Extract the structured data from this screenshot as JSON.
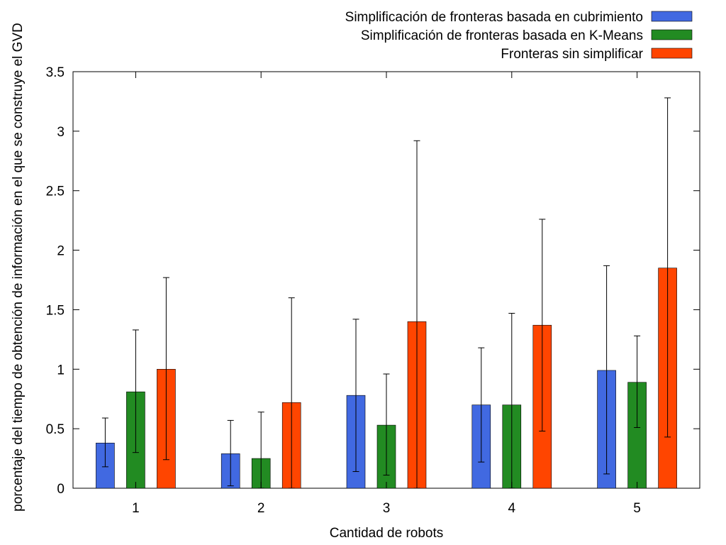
{
  "chart_data": {
    "type": "bar",
    "title": "",
    "xlabel": "Cantidad de robots",
    "ylabel": "porcentaje del tiempo de obtención de información en el que se construye el GVD",
    "categories": [
      "1",
      "2",
      "3",
      "4",
      "5"
    ],
    "ylim": [
      0,
      3.5
    ],
    "yticks": [
      "0",
      "0.5",
      "1",
      "1.5",
      "2",
      "2.5",
      "3",
      "3.5"
    ],
    "legend_position": "top-right",
    "error_bars": true,
    "series": [
      {
        "name": "Simplificación de fronteras basada en cubrimiento",
        "color": "#4169e1",
        "values": [
          0.38,
          0.29,
          0.78,
          0.7,
          0.99
        ],
        "err_low": [
          0.18,
          0.02,
          0.14,
          0.22,
          0.12
        ],
        "err_high": [
          0.59,
          0.57,
          1.42,
          1.18,
          1.87
        ]
      },
      {
        "name": "Simplificación de fronteras basada en K-Means",
        "color": "#228b22",
        "values": [
          0.81,
          0.25,
          0.53,
          0.7,
          0.89
        ],
        "err_low": [
          0.3,
          0.0,
          0.11,
          0.0,
          0.51
        ],
        "err_high": [
          1.33,
          0.64,
          0.96,
          1.47,
          1.28
        ]
      },
      {
        "name": "Fronteras sin simplificar",
        "color": "#ff4500",
        "values": [
          1.0,
          0.72,
          1.4,
          1.37,
          1.85
        ],
        "err_low": [
          0.24,
          0.0,
          0.0,
          0.48,
          0.43
        ],
        "err_high": [
          1.77,
          1.6,
          2.92,
          2.26,
          3.28
        ]
      }
    ]
  }
}
